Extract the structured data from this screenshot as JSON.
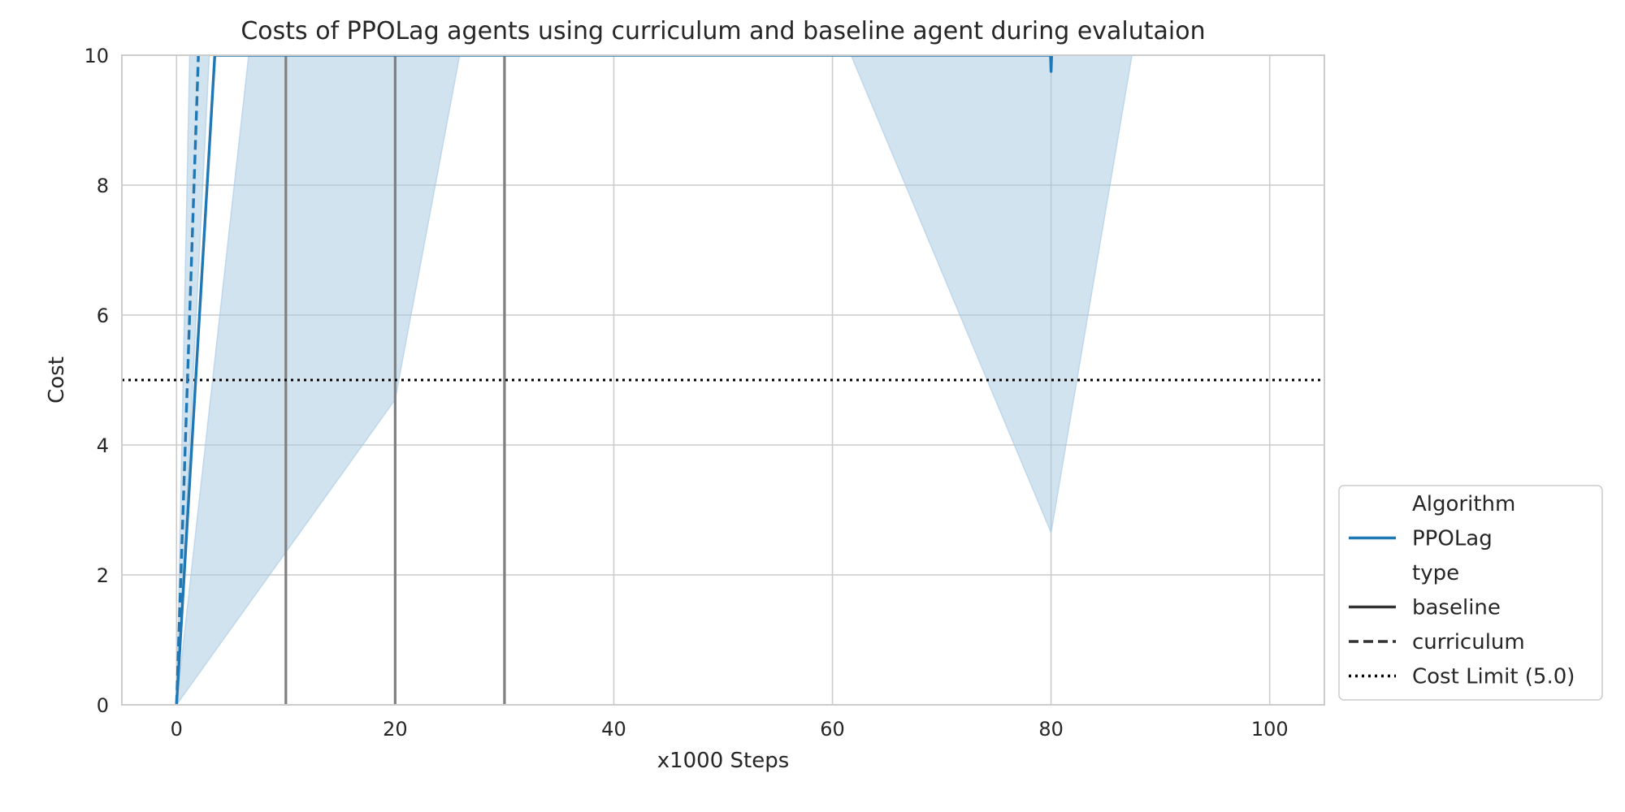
{
  "chart_data": {
    "type": "line",
    "title": "Costs of PPOLag agents using curriculum and baseline agent during evalutaion",
    "xlabel": "x1000 Steps",
    "ylabel": "Cost",
    "xlim": [
      -5,
      105
    ],
    "ylim": [
      0,
      10
    ],
    "x_ticks": [
      0,
      20,
      40,
      60,
      80,
      100
    ],
    "y_ticks": [
      0,
      2,
      4,
      6,
      8,
      10
    ],
    "grid": true,
    "series_color": "#1f77b4",
    "band_color": "#a6c8e2",
    "series": [
      {
        "name": "PPOLag",
        "style": "baseline",
        "x": [
          0,
          3.5,
          79.95,
          80,
          80.05
        ],
        "y": [
          0,
          10,
          10,
          9.75,
          10
        ]
      },
      {
        "name": "PPOLag",
        "style": "curriculum",
        "x": [
          0,
          2.0
        ],
        "y": [
          0,
          10
        ]
      }
    ],
    "bands": [
      {
        "name": "baseline-ci-left",
        "x_lower": [
          0,
          20,
          25.9
        ],
        "y_lower": [
          0,
          4.7,
          10
        ],
        "x_upper": [
          0,
          6.6
        ],
        "y_upper": [
          0,
          10
        ]
      },
      {
        "name": "baseline-ci-right",
        "points": [
          [
            61.7,
            10
          ],
          [
            80,
            2.65
          ],
          [
            87.4,
            10
          ]
        ]
      },
      {
        "name": "curriculum-ci",
        "x_lower": [
          0,
          3.0
        ],
        "y_lower": [
          0,
          10
        ],
        "x_upper": [
          0,
          1.2
        ],
        "y_upper": [
          0,
          10
        ]
      }
    ],
    "vertical_lines": [
      10,
      20,
      30
    ],
    "vertical_line_color": "#808080",
    "cost_limit": 5.0,
    "legend": {
      "placement": "lower-right-outside",
      "items": [
        {
          "label": "Algorithm",
          "style": "header"
        },
        {
          "label": "PPOLag",
          "style": "solid",
          "color": "#1f77b4"
        },
        {
          "label": "type",
          "style": "header"
        },
        {
          "label": "baseline",
          "style": "solid",
          "color": "#333333"
        },
        {
          "label": "curriculum",
          "style": "dashed",
          "color": "#333333"
        },
        {
          "label": "Cost Limit (5.0)",
          "style": "dotted",
          "color": "#000000"
        }
      ]
    }
  }
}
